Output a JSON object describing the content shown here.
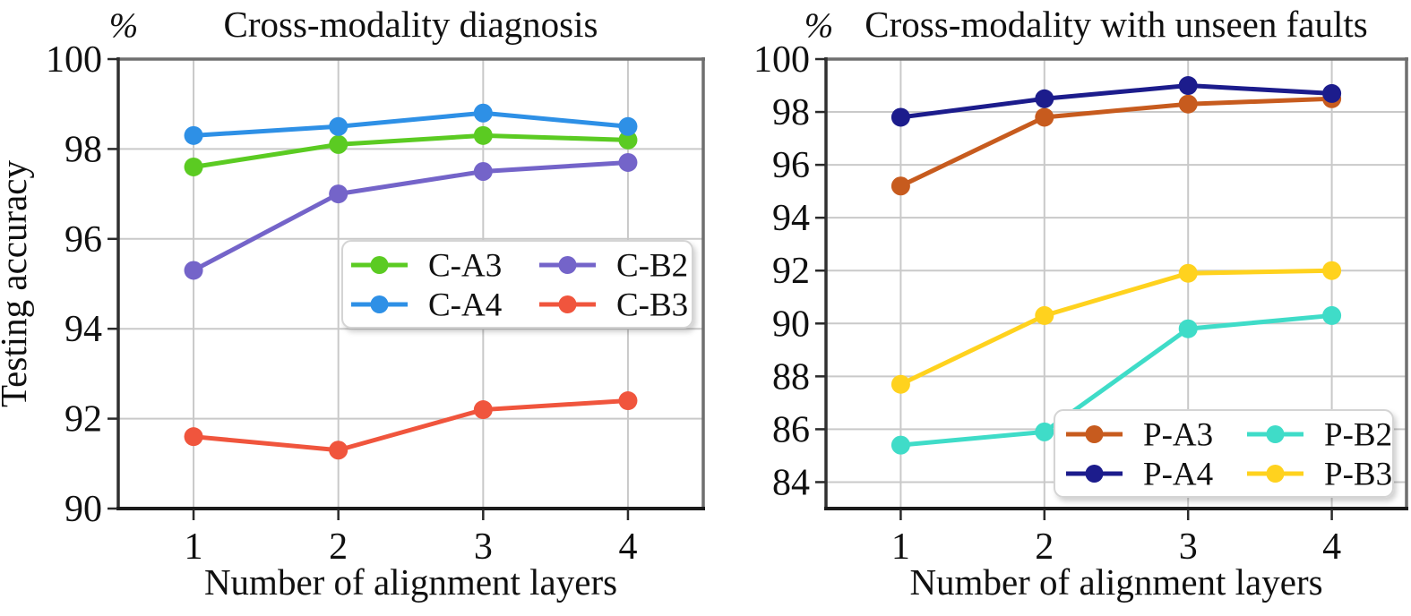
{
  "figure": {
    "background": "#ffffff",
    "text_color": "#101010",
    "grid_color": "#c9c9c9",
    "spine_dark_color": "#2a2a2a",
    "spine_light_color": "#6f6f6f"
  },
  "chart_data": [
    {
      "type": "line",
      "title": "Cross-modality diagnosis",
      "unit_label": "%",
      "ylabel": "Testing accuracy",
      "xlabel": "Number of alignment layers",
      "x": [
        1,
        2,
        3,
        4
      ],
      "x_tick_labels": [
        "1",
        "2",
        "3",
        "4"
      ],
      "y_ticks": [
        90,
        92,
        94,
        96,
        98,
        100
      ],
      "ylim": [
        90,
        100
      ],
      "xlim": [
        0.48,
        4.52
      ],
      "grid": true,
      "legend_rows": [
        [
          "C-A3",
          "C-B2"
        ],
        [
          "C-A4",
          "C-B3"
        ]
      ],
      "series": [
        {
          "name": "C-A3",
          "color": "#5bcb22",
          "values": [
            97.6,
            98.1,
            98.3,
            98.2
          ]
        },
        {
          "name": "C-A4",
          "color": "#2e90e6",
          "values": [
            98.3,
            98.5,
            98.8,
            98.5
          ]
        },
        {
          "name": "C-B2",
          "color": "#7464c9",
          "values": [
            95.3,
            97.0,
            97.5,
            97.7
          ]
        },
        {
          "name": "C-B3",
          "color": "#f0553d",
          "values": [
            91.6,
            91.3,
            92.2,
            92.4
          ]
        }
      ]
    },
    {
      "type": "line",
      "title": "Cross-modality with unseen faults",
      "unit_label": "%",
      "ylabel": "",
      "xlabel": "Number of alignment layers",
      "x": [
        1,
        2,
        3,
        4
      ],
      "x_tick_labels": [
        "1",
        "2",
        "3",
        "4"
      ],
      "y_ticks": [
        84,
        86,
        88,
        90,
        92,
        94,
        96,
        98,
        100
      ],
      "ylim": [
        83,
        100
      ],
      "xlim": [
        0.48,
        4.52
      ],
      "grid": true,
      "legend_rows": [
        [
          "P-A3",
          "P-B2"
        ],
        [
          "P-A4",
          "P-B3"
        ]
      ],
      "series": [
        {
          "name": "P-A3",
          "color": "#c75b1e",
          "values": [
            95.2,
            97.8,
            98.3,
            98.5
          ]
        },
        {
          "name": "P-A4",
          "color": "#1c1c8c",
          "values": [
            97.8,
            98.5,
            99.0,
            98.7
          ]
        },
        {
          "name": "P-B2",
          "color": "#3fdcc8",
          "values": [
            85.4,
            85.9,
            89.8,
            90.3
          ]
        },
        {
          "name": "P-B3",
          "color": "#ffd21e",
          "values": [
            87.7,
            90.3,
            91.9,
            92.0
          ]
        }
      ]
    }
  ]
}
